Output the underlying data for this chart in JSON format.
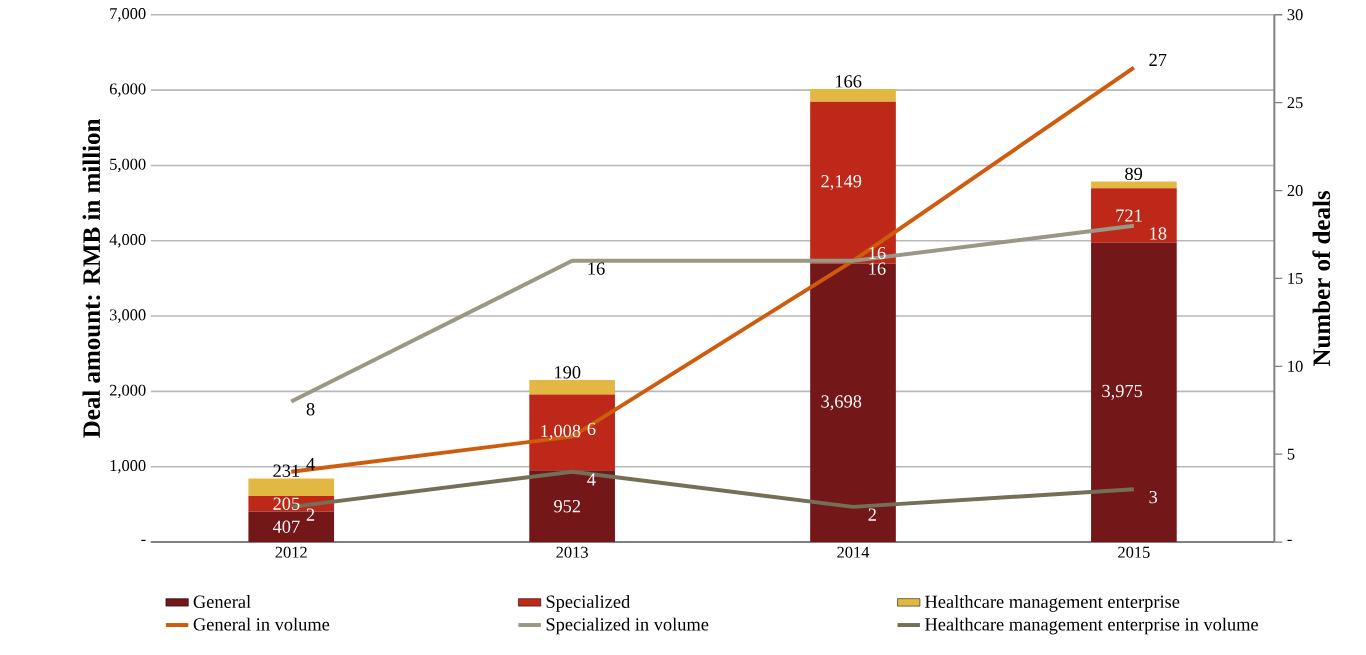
{
  "chart_data": {
    "type": "bar",
    "stacked": true,
    "grid": "y",
    "legend": "bottom",
    "ylabel": "Deal amount: RMB in million",
    "y2label": "Number of deals",
    "categories": [
      "2012",
      "2013",
      "2014",
      "2015"
    ],
    "ylim": [
      0,
      7000
    ],
    "yticks": [
      {
        "value": 0,
        "label": "-"
      },
      {
        "value": 1000,
        "label": "1,000"
      },
      {
        "value": 2000,
        "label": "2,000"
      },
      {
        "value": 3000,
        "label": "3,000"
      },
      {
        "value": 4000,
        "label": "4,000"
      },
      {
        "value": 5000,
        "label": "5,000"
      },
      {
        "value": 6000,
        "label": "6,000"
      },
      {
        "value": 7000,
        "label": "7,000"
      }
    ],
    "y2lim": [
      0,
      30
    ],
    "y2ticks": [
      {
        "value": 0,
        "label": "-"
      },
      5,
      10,
      15,
      20,
      25,
      30
    ],
    "series": [
      {
        "name": "General",
        "color": "#731719",
        "values": [
          407,
          952,
          3698,
          3975
        ],
        "value_labels": [
          "407",
          "952",
          "3,698",
          "3,975"
        ]
      },
      {
        "name": "Specialized",
        "color": "#bd2818",
        "values": [
          205,
          1008,
          2149,
          721
        ],
        "value_labels": [
          "205",
          "1,008",
          "2,149",
          "721"
        ]
      },
      {
        "name": "Healthcare management enterprise",
        "color": "#e2b842",
        "values": [
          231,
          190,
          166,
          89
        ],
        "value_labels": [
          "231",
          "190",
          "166",
          "89"
        ]
      },
      {
        "name": "General in volume",
        "type": "line",
        "axis": "y2",
        "color": "#cf5b0c",
        "values": [
          4,
          6,
          16,
          27
        ],
        "value_labels": [
          "4",
          "6",
          "16",
          "27"
        ]
      },
      {
        "name": "Specialized in volume",
        "type": "line",
        "axis": "y2",
        "color": "#9a9784",
        "values": [
          8,
          16,
          16,
          18
        ],
        "value_labels": [
          "8",
          "16",
          "16",
          "18"
        ]
      },
      {
        "name": "Healthcare management enterprise in volume",
        "type": "line",
        "axis": "y2",
        "color": "#746f57",
        "values": [
          2,
          4,
          2,
          3
        ],
        "value_labels": [
          "2",
          "4",
          "2",
          "3"
        ]
      }
    ]
  }
}
